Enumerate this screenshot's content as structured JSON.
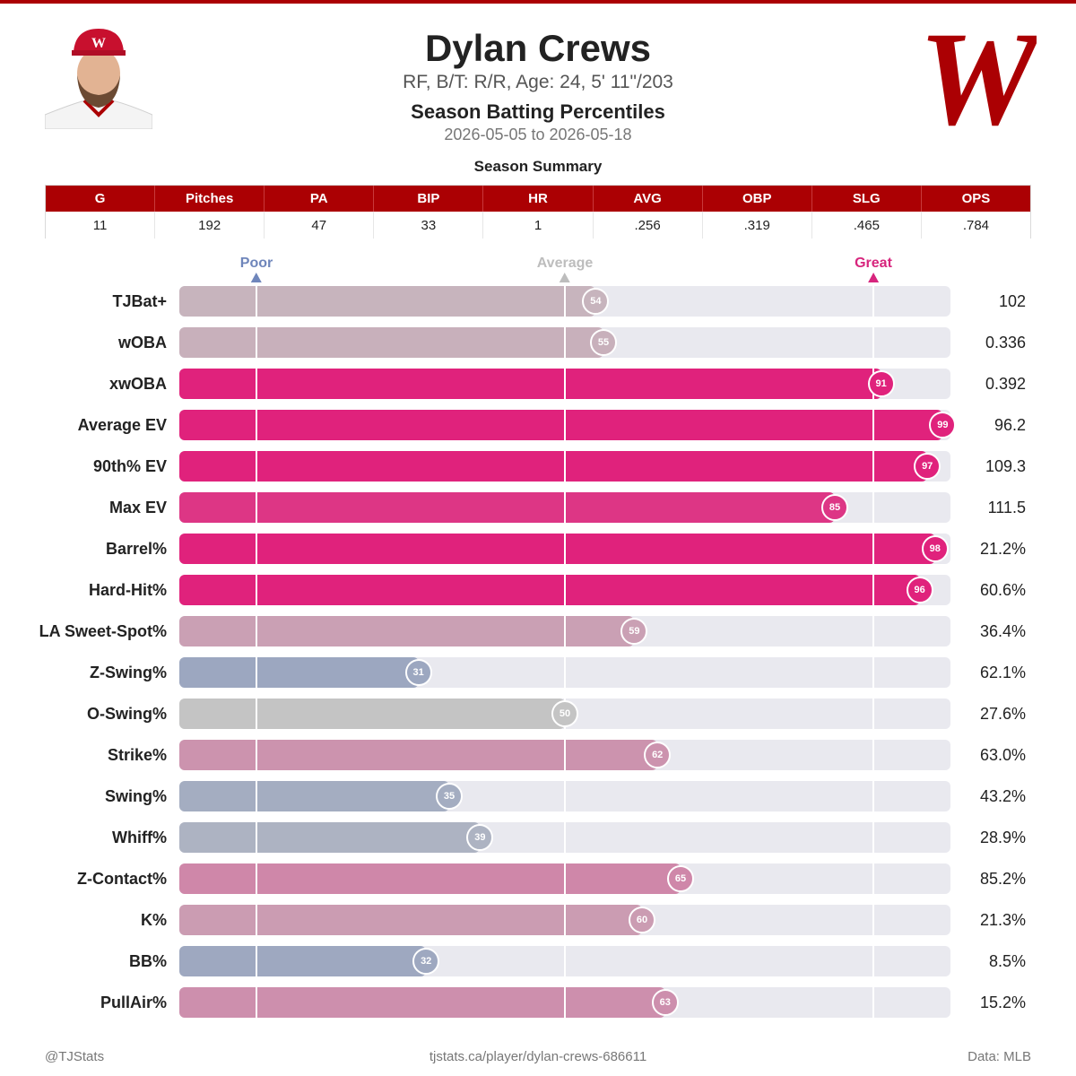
{
  "header": {
    "name": "Dylan Crews",
    "bio": "RF, B/T: R/R, Age: 24, 5' 11\"/203",
    "title": "Season Batting Percentiles",
    "date_range": "2026-05-05 to 2026-05-18",
    "logo_letter": "W"
  },
  "summary": {
    "title": "Season Summary",
    "columns": [
      "G",
      "Pitches",
      "PA",
      "BIP",
      "HR",
      "AVG",
      "OBP",
      "SLG",
      "OPS"
    ],
    "values": [
      "11",
      "192",
      "47",
      "33",
      "1",
      ".256",
      ".319",
      ".465",
      ".784"
    ]
  },
  "scale": {
    "poor": "Poor",
    "average": "Average",
    "great": "Great"
  },
  "chart_data": {
    "type": "bar",
    "orientation": "horizontal",
    "xlim": [
      0,
      100
    ],
    "reference_percentiles": {
      "poor": 10,
      "average": 50,
      "great": 90
    },
    "categories": [
      "TJBat+",
      "wOBA",
      "xwOBA",
      "Average EV",
      "90th% EV",
      "Max EV",
      "Barrel%",
      "Hard-Hit%",
      "LA Sweet-Spot%",
      "Z-Swing%",
      "O-Swing%",
      "Strike%",
      "Swing%",
      "Whiff%",
      "Z-Contact%",
      "K%",
      "BB%",
      "PullAir%"
    ],
    "percentiles": [
      54,
      55,
      91,
      99,
      97,
      85,
      98,
      96,
      59,
      31,
      50,
      62,
      35,
      39,
      65,
      60,
      32,
      63
    ],
    "stat_values": [
      "102",
      "0.336",
      "0.392",
      "96.2",
      "109.3",
      "111.5",
      "21.2%",
      "60.6%",
      "36.4%",
      "62.1%",
      "27.6%",
      "63.0%",
      "43.2%",
      "28.9%",
      "85.2%",
      "21.3%",
      "8.5%",
      "15.2%"
    ],
    "colors": {
      "poor": "#6f86bb",
      "average": "#c4c4c4",
      "great": "#e0227c",
      "track": "#e9e9ef",
      "brand": "#ab0003"
    }
  },
  "footer": {
    "handle": "@TJStats",
    "url": "tjstats.ca/player/dylan-crews-686611",
    "source": "Data: MLB"
  }
}
